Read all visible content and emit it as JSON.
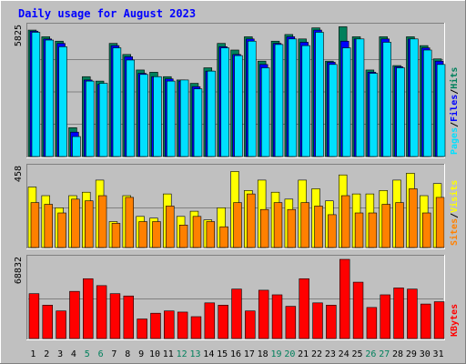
{
  "title": "Daily usage for August 2023",
  "colors": {
    "background": "#c0c0c0",
    "title_text": "#0000ff",
    "hits": "#00805c",
    "files": "#0000ff",
    "pages": "#00e0ff",
    "visits": "#ffff00",
    "sites": "#ff8000",
    "kbytes": "#ff0000",
    "weekend_day": "#00805c",
    "weekday": "#000000"
  },
  "chart_data": [
    {
      "type": "bar",
      "categories": [
        "1",
        "2",
        "3",
        "4",
        "5",
        "6",
        "7",
        "8",
        "9",
        "10",
        "11",
        "12",
        "13",
        "14",
        "15",
        "16",
        "17",
        "18",
        "19",
        "20",
        "21",
        "22",
        "23",
        "24",
        "25",
        "26",
        "27",
        "28",
        "29",
        "30",
        "31"
      ],
      "weekend_days": [
        "5",
        "6",
        "12",
        "13",
        "19",
        "20",
        "26",
        "27"
      ],
      "max_label": "5825",
      "legend": [
        "Pages",
        "/",
        "Files",
        "/",
        "Hits"
      ],
      "ylim": [
        0,
        5825
      ],
      "series": [
        {
          "name": "Hits",
          "values": [
            5700,
            5400,
            5200,
            1300,
            3600,
            3400,
            5100,
            4600,
            3900,
            3800,
            3600,
            3450,
            3300,
            4000,
            5100,
            4800,
            5400,
            4300,
            5200,
            5500,
            5300,
            5800,
            4300,
            5850,
            5400,
            3900,
            5400,
            4100,
            5400,
            5000,
            4400
          ]
        },
        {
          "name": "Files",
          "values": [
            5650,
            5300,
            5100,
            1100,
            3450,
            3250,
            5000,
            4500,
            3750,
            3600,
            3500,
            3400,
            3150,
            3850,
            4950,
            4600,
            5300,
            4150,
            5100,
            5400,
            5150,
            5700,
            4250,
            5200,
            5300,
            3800,
            5300,
            4050,
            5300,
            4900,
            4300
          ]
        },
        {
          "name": "Pages",
          "values": [
            5600,
            5250,
            4950,
            900,
            3400,
            3300,
            4900,
            4350,
            3700,
            3600,
            3400,
            3450,
            3050,
            3850,
            4900,
            4550,
            5200,
            4000,
            5050,
            5300,
            5000,
            5600,
            4150,
            4900,
            5300,
            3750,
            5150,
            4000,
            5300,
            4800,
            4150
          ]
        }
      ]
    },
    {
      "type": "bar",
      "categories": [
        "1",
        "2",
        "3",
        "4",
        "5",
        "6",
        "7",
        "8",
        "9",
        "10",
        "11",
        "12",
        "13",
        "14",
        "15",
        "16",
        "17",
        "18",
        "19",
        "20",
        "21",
        "22",
        "23",
        "24",
        "25",
        "26",
        "27",
        "28",
        "29",
        "30",
        "31"
      ],
      "max_label": "458",
      "legend": [
        "Sites",
        "/",
        "Visits"
      ],
      "ylim": [
        0,
        458
      ],
      "series": [
        {
          "name": "Visits",
          "values": [
            350,
            300,
            230,
            300,
            320,
            390,
            150,
            300,
            180,
            170,
            310,
            180,
            210,
            160,
            230,
            440,
            330,
            390,
            320,
            280,
            390,
            340,
            270,
            420,
            310,
            310,
            330,
            390,
            430,
            300,
            370
          ]
        },
        {
          "name": "Sites",
          "values": [
            260,
            250,
            200,
            280,
            270,
            300,
            140,
            290,
            150,
            150,
            240,
            130,
            180,
            150,
            120,
            260,
            310,
            220,
            260,
            220,
            260,
            240,
            190,
            300,
            200,
            200,
            250,
            260,
            340,
            200,
            290
          ]
        }
      ]
    },
    {
      "type": "bar",
      "categories": [
        "1",
        "2",
        "3",
        "4",
        "5",
        "6",
        "7",
        "8",
        "9",
        "10",
        "11",
        "12",
        "13",
        "14",
        "15",
        "16",
        "17",
        "18",
        "19",
        "20",
        "21",
        "22",
        "23",
        "24",
        "25",
        "26",
        "27",
        "28",
        "29",
        "30",
        "31"
      ],
      "max_label": "68832",
      "legend": [
        "KBytes"
      ],
      "ylim": [
        0,
        68832
      ],
      "series": [
        {
          "name": "KBytes",
          "values": [
            39000,
            29000,
            24000,
            41000,
            52000,
            46000,
            39000,
            37000,
            17000,
            22000,
            24000,
            23000,
            19000,
            31000,
            29000,
            43000,
            24000,
            42000,
            38000,
            28000,
            52000,
            31000,
            29000,
            68832,
            49000,
            27000,
            38000,
            44000,
            43000,
            30000,
            32000
          ]
        }
      ]
    }
  ]
}
